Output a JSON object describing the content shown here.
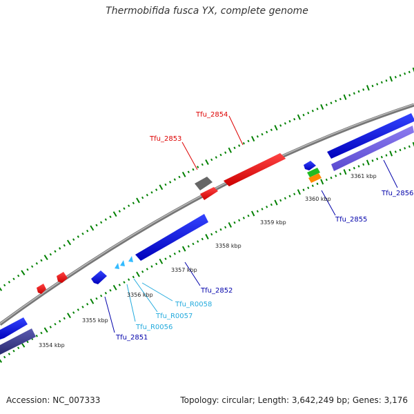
{
  "title": "Thermobifida fusca YX, complete genome",
  "footer": {
    "accession": "Accession: NC_007333",
    "summary": "Topology: circular; Length: 3,642,249 bp; Genes: 3,176"
  },
  "colors": {
    "backbone": "#888888",
    "tick": "#008000",
    "red": "#ff0000",
    "blue": "#0000ff",
    "lightblue": "#33bbff",
    "grey": "#666666",
    "lavender": "#7b68ee",
    "green": "#22aa22",
    "orange": "#ff8800"
  },
  "scale_labels": [
    "3354 kbp",
    "3355 kbp",
    "3356 kbp",
    "3357 kbp",
    "3358 kbp",
    "3359 kbp",
    "3360 kbp",
    "3361 kbp"
  ],
  "gene_labels": [
    {
      "text": "Tfu_2854",
      "color": "#dd0000"
    },
    {
      "text": "Tfu_2853",
      "color": "#dd0000"
    },
    {
      "text": "Tfu_2855",
      "color": "#0000aa"
    },
    {
      "text": "Tfu_2856",
      "color": "#0000aa"
    },
    {
      "text": "Tfu_2852",
      "color": "#0000aa"
    },
    {
      "text": "Tfu_R0058",
      "color": "#22aadd"
    },
    {
      "text": "Tfu_R0057",
      "color": "#22aadd"
    },
    {
      "text": "Tfu_R0056",
      "color": "#22aadd"
    },
    {
      "text": "Tfu_2851",
      "color": "#0000aa"
    }
  ]
}
